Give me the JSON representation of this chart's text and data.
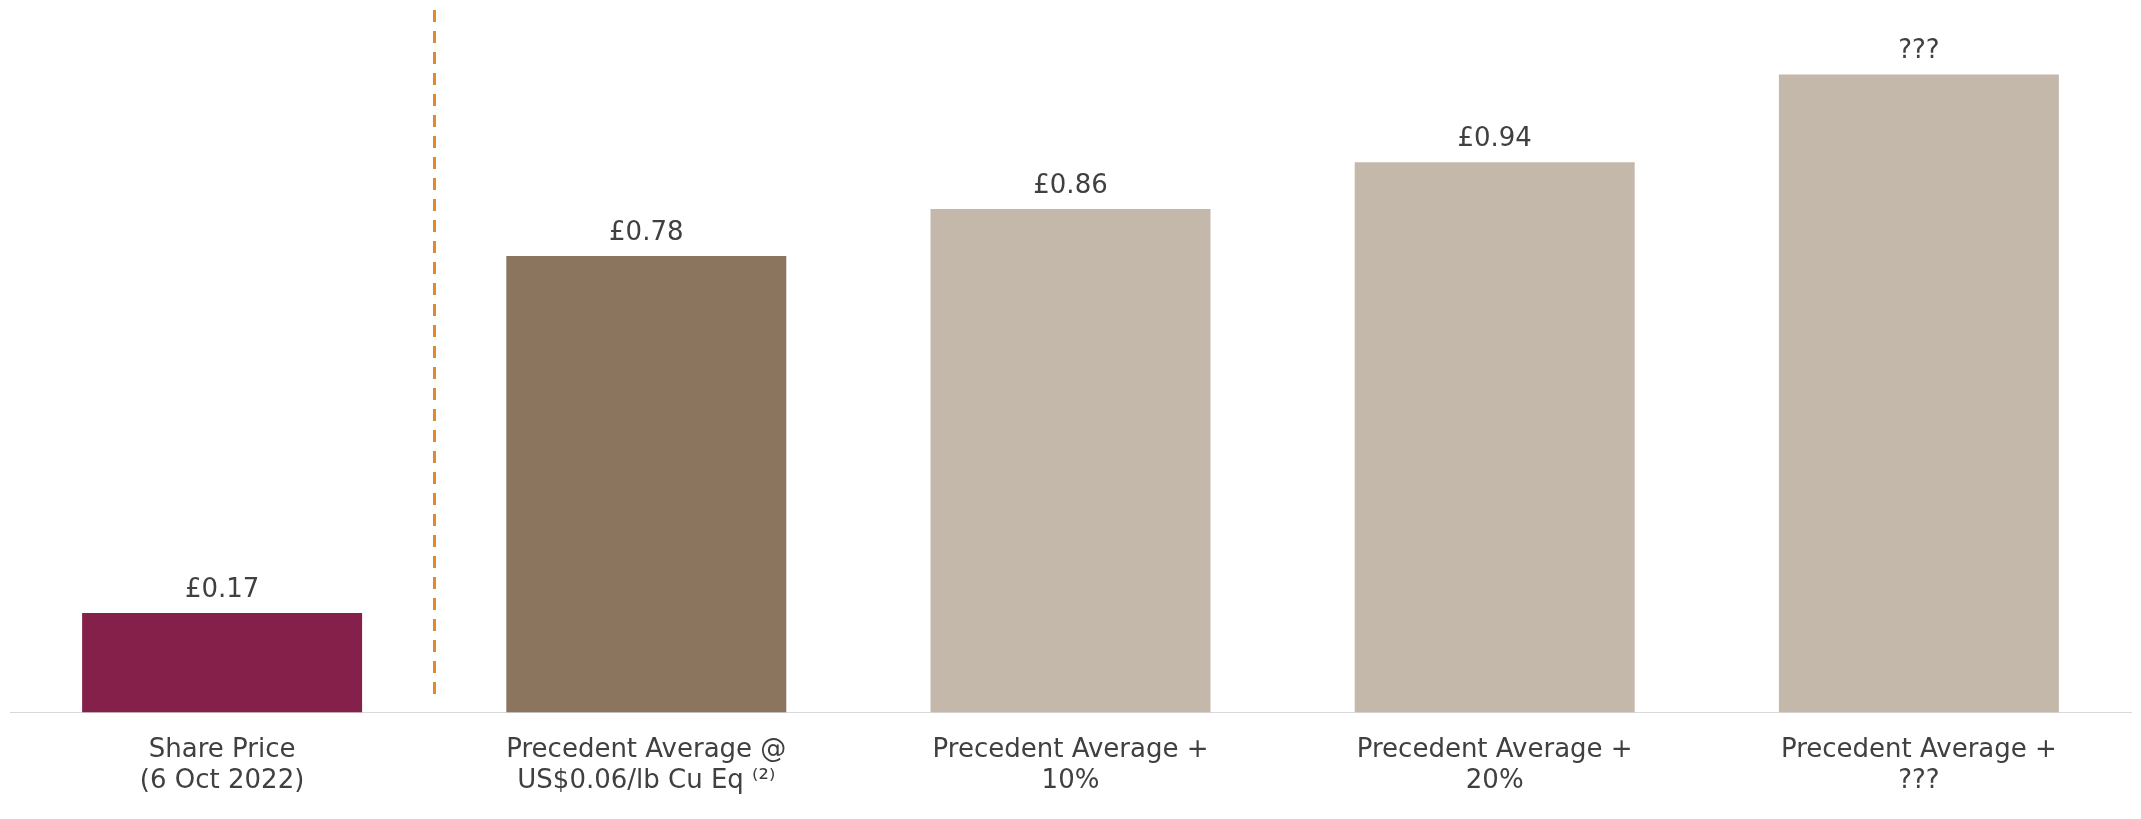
{
  "chart_data": {
    "type": "bar",
    "categories": [
      "Share Price\n(6 Oct 2022)",
      "Precedent Average @\nUS$0.06/lb Cu Eq ⁽²⁾",
      "Precedent Average +\n10%",
      "Precedent Average +\n20%",
      "Precedent Average +\n???"
    ],
    "values": [
      0.17,
      0.78,
      0.86,
      0.94,
      1.09
    ],
    "colors": [
      "#85204a",
      "#8b755e",
      "#c4b8ab",
      "#c4b8ab",
      "#c4b8ab"
    ],
    "value_labels": [
      "£0.17",
      "£0.78",
      "£0.86",
      "£0.94",
      "???"
    ],
    "ylim": [
      0,
      1.2
    ],
    "grid": false,
    "legend": false
  }
}
